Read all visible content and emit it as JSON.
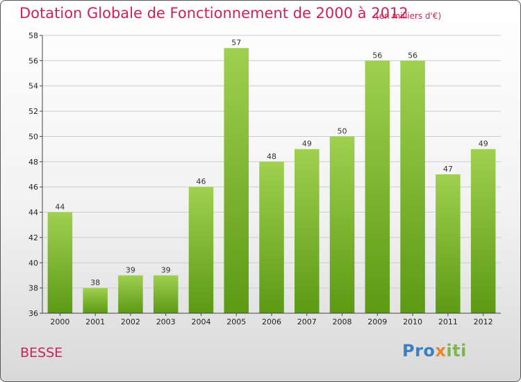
{
  "header": {
    "title": "Dotation Globale de Fonctionnement de 2000 à 2012",
    "subtitle": "(en milliers d'€)"
  },
  "footer": {
    "commune": "BESSE",
    "logo_parts": [
      "Pro",
      "x",
      "iti"
    ]
  },
  "colors": {
    "title": "#cc2255",
    "bar_top": "#9fd04f",
    "bar_bottom": "#5c9a14",
    "grid": "#cccccc"
  },
  "chart_data": {
    "type": "bar",
    "title": "Dotation Globale de Fonctionnement de 2000 à 2012",
    "xlabel": "",
    "ylabel": "",
    "categories": [
      "2000",
      "2001",
      "2002",
      "2003",
      "2004",
      "2005",
      "2006",
      "2007",
      "2008",
      "2009",
      "2010",
      "2011",
      "2012"
    ],
    "values": [
      44,
      38,
      39,
      39,
      46,
      57,
      48,
      49,
      50,
      56,
      56,
      47,
      49
    ],
    "ylim": [
      36,
      58
    ],
    "yticks": [
      36,
      38,
      40,
      42,
      44,
      46,
      48,
      50,
      52,
      54,
      56,
      58
    ],
    "grid": true
  }
}
